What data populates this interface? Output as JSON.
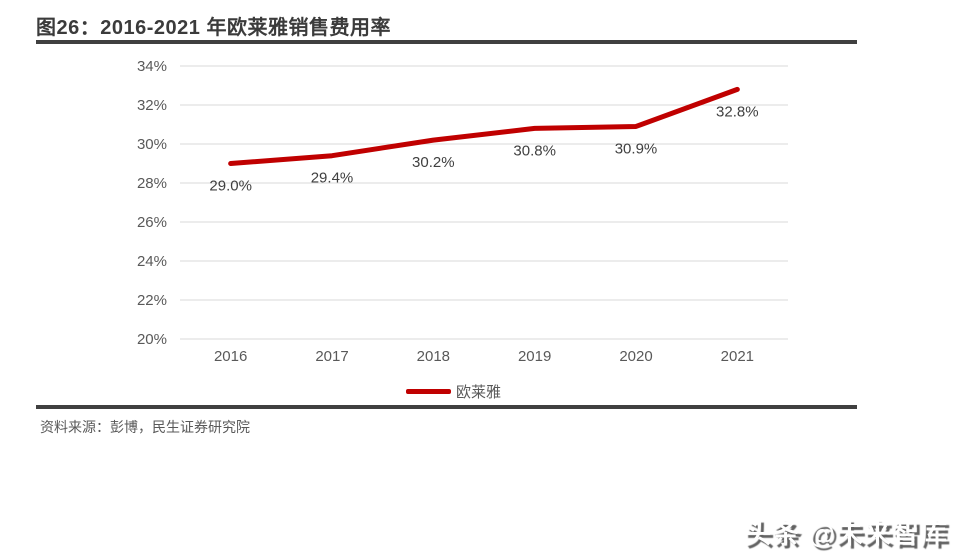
{
  "header": {
    "title": "图26：2016-2021 年欧莱雅销售费用率"
  },
  "chart_data": {
    "type": "line",
    "title": "2016-2021 年欧莱雅销售费用率",
    "categories": [
      "2016",
      "2017",
      "2018",
      "2019",
      "2020",
      "2021"
    ],
    "series": [
      {
        "name": "欧莱雅",
        "values": [
          29.0,
          29.4,
          30.2,
          30.8,
          30.9,
          32.8
        ]
      }
    ],
    "data_labels": [
      "29.0%",
      "29.4%",
      "30.2%",
      "30.8%",
      "30.9%",
      "32.8%"
    ],
    "xlabel": "",
    "ylabel": "",
    "ylim": [
      20,
      34
    ],
    "yticks": [
      20,
      22,
      24,
      26,
      28,
      30,
      32,
      34
    ],
    "ytick_suffix": "%",
    "grid": true,
    "legend_position": "bottom",
    "line_color": "#c00000",
    "gridline_color": "#d9d9d9"
  },
  "legend": {
    "label": "欧莱雅"
  },
  "source": {
    "text": "资料来源：彭博，民生证券研究院"
  },
  "watermark": {
    "text": "头条 @未来智库"
  }
}
